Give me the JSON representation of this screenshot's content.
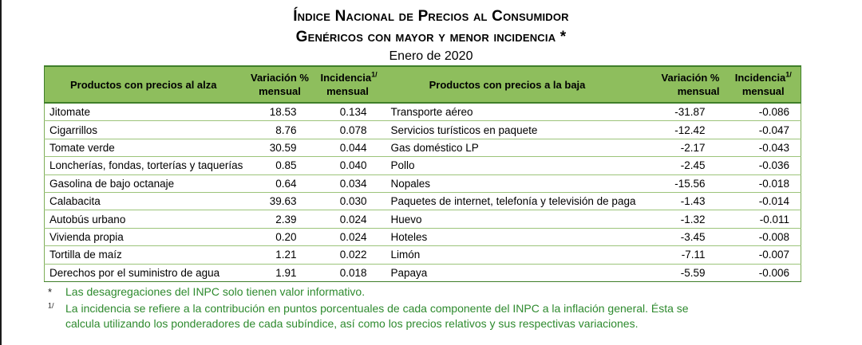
{
  "title_line1": "Índice Nacional de Precios al Consumidor",
  "title_line2": "Genéricos con mayor y menor incidencia *",
  "subtitle": "Enero de 2020",
  "headers": {
    "left_product": "Productos con precios al alza",
    "variation_a": "Variación %",
    "variation_b": "mensual",
    "incidence_a": "Incidencia",
    "incidence_sup": "1/",
    "incidence_b": "mensual",
    "right_product": "Productos con precios a la baja"
  },
  "rows": [
    {
      "up_product": "Jitomate",
      "up_var": "18.53",
      "up_inc": "0.134",
      "down_product": "Transporte aéreo",
      "down_var": "-31.87",
      "down_inc": "-0.086"
    },
    {
      "up_product": "Cigarrillos",
      "up_var": "8.76",
      "up_inc": "0.078",
      "down_product": "Servicios turísticos en paquete",
      "down_var": "-12.42",
      "down_inc": "-0.047"
    },
    {
      "up_product": "Tomate verde",
      "up_var": "30.59",
      "up_inc": "0.044",
      "down_product": "Gas doméstico LP",
      "down_var": "-2.17",
      "down_inc": "-0.043"
    },
    {
      "up_product": "Loncherías, fondas, torterías y taquerías",
      "up_var": "0.85",
      "up_inc": "0.040",
      "down_product": "Pollo",
      "down_var": "-2.45",
      "down_inc": "-0.036"
    },
    {
      "up_product": "Gasolina de bajo octanaje",
      "up_var": "0.64",
      "up_inc": "0.034",
      "down_product": "Nopales",
      "down_var": "-15.56",
      "down_inc": "-0.018"
    },
    {
      "up_product": "Calabacita",
      "up_var": "39.63",
      "up_inc": "0.030",
      "down_product": "Paquetes de internet, telefonía y televisión de paga",
      "down_var": "-1.43",
      "down_inc": "-0.014"
    },
    {
      "up_product": "Autobús urbano",
      "up_var": "2.39",
      "up_inc": "0.024",
      "down_product": "Huevo",
      "down_var": "-1.32",
      "down_inc": "-0.011"
    },
    {
      "up_product": "Vivienda propia",
      "up_var": "0.20",
      "up_inc": "0.024",
      "down_product": "Hoteles",
      "down_var": "-3.45",
      "down_inc": "-0.008"
    },
    {
      "up_product": "Tortilla de maíz",
      "up_var": "1.21",
      "up_inc": "0.022",
      "down_product": "Limón",
      "down_var": "-7.11",
      "down_inc": "-0.007"
    },
    {
      "up_product": "Derechos por el suministro de agua",
      "up_var": "1.91",
      "up_inc": "0.018",
      "down_product": "Papaya",
      "down_var": "-5.59",
      "down_inc": "-0.006"
    }
  ],
  "notes": {
    "star_mark": "*",
    "star_text": "Las desagregaciones del INPC solo tienen valor informativo.",
    "inc_mark": "1/",
    "inc_text_line1": "La incidencia se refiere a la contribución en puntos porcentuales de cada componente del INPC a la inflación general. Ésta se",
    "inc_text_line2": "calcula utilizando los ponderadores de cada subíndice, así como los precios relativos y sus respectivas variaciones."
  },
  "colors": {
    "header_bg": "#8ebe5d",
    "note_text": "#2e8a2e",
    "border": "#3f7f2a"
  }
}
